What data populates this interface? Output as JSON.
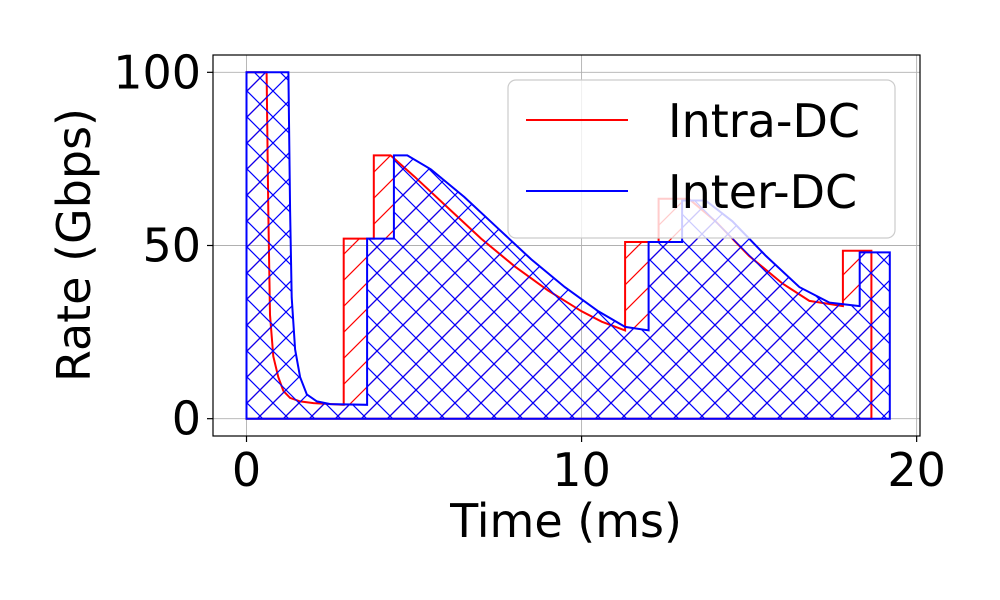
{
  "chart_data": {
    "type": "area",
    "title": "",
    "xlabel": "Time (ms)",
    "ylabel": "Rate (Gbps)",
    "xlim": [
      -1,
      20.1
    ],
    "ylim": [
      -5,
      105
    ],
    "xticks": [
      0,
      10,
      20
    ],
    "yticks": [
      0,
      50,
      100
    ],
    "grid": true,
    "legend": "top-right",
    "series": [
      {
        "name": "Intra-DC",
        "color": "#ff0000",
        "hatch": "diagonal",
        "points": [
          [
            0.0,
            0
          ],
          [
            0.0,
            100
          ],
          [
            0.6,
            100
          ],
          [
            0.65,
            60
          ],
          [
            0.7,
            30
          ],
          [
            0.8,
            18
          ],
          [
            0.95,
            12
          ],
          [
            1.1,
            8
          ],
          [
            1.3,
            6
          ],
          [
            1.6,
            5
          ],
          [
            2.0,
            4.5
          ],
          [
            2.9,
            4
          ],
          [
            2.9,
            52
          ],
          [
            3.8,
            52
          ],
          [
            3.8,
            76
          ],
          [
            4.3,
            76
          ],
          [
            5,
            70
          ],
          [
            6,
            61
          ],
          [
            7,
            52
          ],
          [
            8,
            44
          ],
          [
            9,
            37
          ],
          [
            10,
            31
          ],
          [
            10.6,
            28
          ],
          [
            11.3,
            25.5
          ],
          [
            11.3,
            51
          ],
          [
            12.3,
            51
          ],
          [
            12.3,
            63.5
          ],
          [
            13.2,
            63.5
          ],
          [
            14,
            57
          ],
          [
            15,
            47
          ],
          [
            16,
            39
          ],
          [
            16.8,
            34
          ],
          [
            17.8,
            32.5
          ],
          [
            17.8,
            48.5
          ],
          [
            18.65,
            48.5
          ],
          [
            18.65,
            0
          ]
        ]
      },
      {
        "name": "Inter-DC",
        "color": "#0000ff",
        "hatch": "crosshatch",
        "points": [
          [
            0.0,
            0
          ],
          [
            0.0,
            100
          ],
          [
            1.25,
            100
          ],
          [
            1.3,
            60
          ],
          [
            1.35,
            35
          ],
          [
            1.45,
            20
          ],
          [
            1.6,
            12
          ],
          [
            1.8,
            7
          ],
          [
            2.1,
            5
          ],
          [
            2.5,
            4.2
          ],
          [
            3.6,
            4
          ],
          [
            3.6,
            52
          ],
          [
            4.4,
            52
          ],
          [
            4.4,
            76
          ],
          [
            4.8,
            76
          ],
          [
            5.5,
            72
          ],
          [
            6.5,
            64
          ],
          [
            7.5,
            55
          ],
          [
            8.5,
            46
          ],
          [
            9.5,
            38
          ],
          [
            10.5,
            31
          ],
          [
            11.3,
            26.5
          ],
          [
            12.0,
            25.5
          ],
          [
            12.0,
            51
          ],
          [
            13.0,
            51
          ],
          [
            13.0,
            63
          ],
          [
            13.7,
            63
          ],
          [
            14.5,
            57
          ],
          [
            15.5,
            47
          ],
          [
            16.5,
            38
          ],
          [
            17.4,
            33.5
          ],
          [
            18.3,
            32.5
          ],
          [
            18.3,
            48
          ],
          [
            19.2,
            48
          ],
          [
            19.2,
            0
          ]
        ]
      }
    ]
  }
}
